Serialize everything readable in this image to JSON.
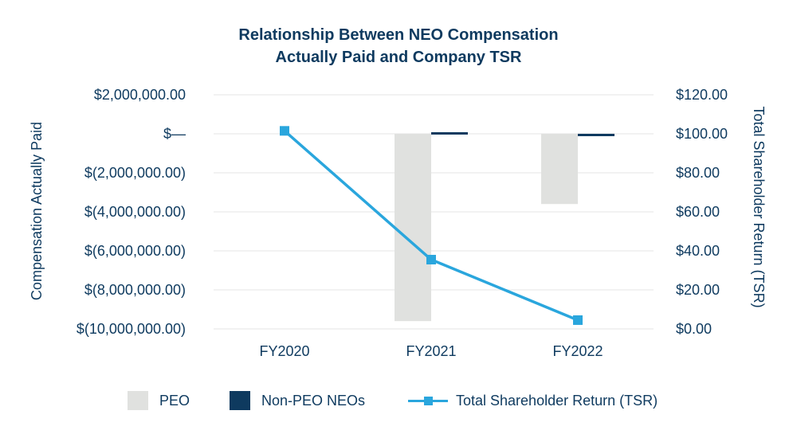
{
  "title_line1": "Relationship Between NEO Compensation",
  "title_line2": "Actually Paid and Company TSR",
  "chart_data": {
    "type": "bar",
    "title": "Relationship Between NEO Compensation Actually Paid and Company TSR",
    "categories": [
      "FY2020",
      "FY2021",
      "FY2022"
    ],
    "ylabel": "Compensation Actually Paid",
    "ylabel2": "Total Shareholder Return (TSR)",
    "ylim": [
      -10000000,
      2000000
    ],
    "ylim2": [
      0,
      120
    ],
    "yticks": [
      2000000,
      0,
      -2000000,
      -4000000,
      -6000000,
      -8000000,
      -10000000
    ],
    "ytick_labels": [
      "$2,000,000.00",
      "$—",
      "$(2,000,000.00)",
      "$(4,000,000.00)",
      "$(6,000,000.00)",
      "$(8,000,000.00)",
      "$(10,000,000.00)"
    ],
    "y2ticks": [
      120,
      100,
      80,
      60,
      40,
      20,
      0
    ],
    "y2tick_labels": [
      "$120.00",
      "$100.00",
      "$80.00",
      "$60.00",
      "$40.00",
      "$20.00",
      "$0.00"
    ],
    "series": [
      {
        "name": "PEO",
        "kind": "bar",
        "axis": "left",
        "color": "#e0e1df",
        "values": [
          0,
          -9600000,
          -3600000
        ]
      },
      {
        "name": "Non-PEO NEOs",
        "kind": "bar",
        "axis": "left",
        "color": "#0e3a5f",
        "values": [
          0,
          120000,
          -60000
        ]
      },
      {
        "name": "Total Shareholder Return (TSR)",
        "kind": "line",
        "axis": "right",
        "color": "#2aa6dd",
        "values": [
          101.5,
          35.5,
          4.5
        ]
      }
    ],
    "grid": true,
    "legend_position": "bottom"
  }
}
